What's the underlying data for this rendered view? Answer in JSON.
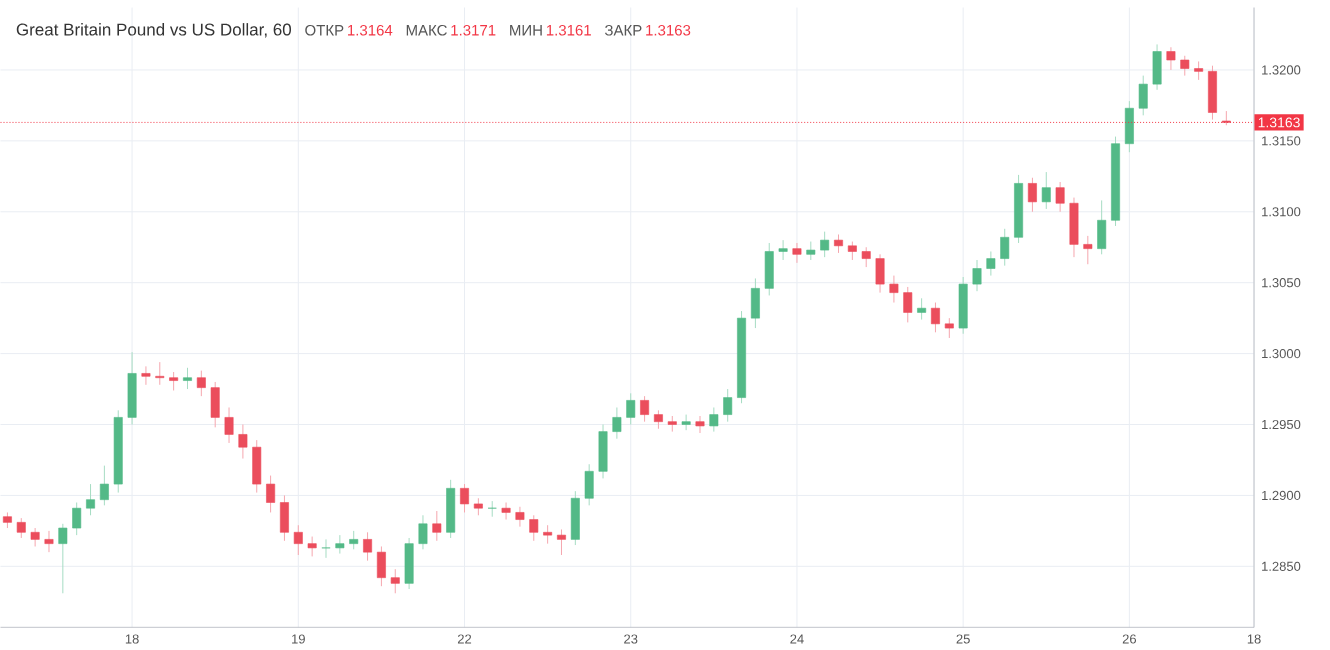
{
  "chart_data": {
    "type": "candlestick",
    "title": "Great Britain Pound vs US Dollar, 60",
    "annotations": [
      "ОТКР",
      "1.3164",
      "МАКС",
      "1.3171",
      "МИН",
      "1.3161",
      "ЗАКР",
      "1.3163"
    ],
    "categories": [
      null,
      null,
      null,
      null,
      null,
      null,
      null,
      null,
      null,
      "18",
      null,
      null,
      null,
      null,
      null,
      null,
      null,
      null,
      null,
      null,
      null,
      "19",
      null,
      null,
      null,
      null,
      null,
      null,
      null,
      null,
      null,
      null,
      null,
      "22",
      null,
      null,
      null,
      null,
      null,
      null,
      null,
      null,
      null,
      null,
      null,
      "23",
      null,
      null,
      null,
      null,
      null,
      null,
      null,
      null,
      null,
      null,
      null,
      "24",
      null,
      null,
      null,
      null,
      null,
      null,
      null,
      null,
      null,
      null,
      null,
      "25",
      null,
      null,
      null,
      null,
      null,
      null,
      null,
      null,
      null,
      null,
      null,
      "26",
      null,
      null,
      null,
      null,
      null,
      null,
      null,
      null,
      "18"
    ],
    "ohlc": [
      [
        1.2885,
        1.2888,
        1.2877,
        1.2881
      ],
      [
        1.2881,
        1.2884,
        1.287,
        1.2874
      ],
      [
        1.2874,
        1.2877,
        1.2864,
        1.2869
      ],
      [
        1.2869,
        1.2875,
        1.286,
        1.2866
      ],
      [
        1.2866,
        1.288,
        1.2831,
        1.2877
      ],
      [
        1.2877,
        1.2895,
        1.2872,
        1.2891
      ],
      [
        1.2891,
        1.2908,
        1.2886,
        1.2897
      ],
      [
        1.2897,
        1.2921,
        1.2893,
        1.2908
      ],
      [
        1.2908,
        1.296,
        1.2902,
        1.2955
      ],
      [
        1.2955,
        1.3001,
        1.295,
        1.2986
      ],
      [
        1.2986,
        1.2991,
        1.2978,
        1.2984
      ],
      [
        1.2984,
        1.2994,
        1.2978,
        1.2983
      ],
      [
        1.2983,
        1.2987,
        1.2974,
        1.2981
      ],
      [
        1.2981,
        1.299,
        1.2975,
        1.2983
      ],
      [
        1.2983,
        1.2988,
        1.297,
        1.2976
      ],
      [
        1.2976,
        1.298,
        1.2948,
        1.2955
      ],
      [
        1.2955,
        1.2962,
        1.2937,
        1.2943
      ],
      [
        1.2943,
        1.295,
        1.2926,
        1.2934
      ],
      [
        1.2934,
        1.2939,
        1.2902,
        1.2908
      ],
      [
        1.2908,
        1.2914,
        1.2888,
        1.2895
      ],
      [
        1.2895,
        1.29,
        1.2868,
        1.2874
      ],
      [
        1.2874,
        1.2879,
        1.2858,
        1.2866
      ],
      [
        1.2866,
        1.2871,
        1.2857,
        1.2863
      ],
      [
        1.2863,
        1.2869,
        1.2856,
        1.2863
      ],
      [
        1.2863,
        1.2872,
        1.2859,
        1.2866
      ],
      [
        1.2866,
        1.2875,
        1.2862,
        1.2869
      ],
      [
        1.2869,
        1.2874,
        1.2854,
        1.286
      ],
      [
        1.286,
        1.2864,
        1.2836,
        1.2842
      ],
      [
        1.2842,
        1.2848,
        1.2831,
        1.2838
      ],
      [
        1.2838,
        1.287,
        1.2834,
        1.2866
      ],
      [
        1.2866,
        1.2886,
        1.2862,
        1.288
      ],
      [
        1.288,
        1.2889,
        1.2868,
        1.2874
      ],
      [
        1.2874,
        1.2911,
        1.287,
        1.2905
      ],
      [
        1.2905,
        1.2908,
        1.2888,
        1.2894
      ],
      [
        1.2894,
        1.2898,
        1.2886,
        1.2891
      ],
      [
        1.2891,
        1.2896,
        1.2885,
        1.2891
      ],
      [
        1.2891,
        1.2895,
        1.2883,
        1.2888
      ],
      [
        1.2888,
        1.2892,
        1.2878,
        1.2883
      ],
      [
        1.2883,
        1.2886,
        1.2868,
        1.2874
      ],
      [
        1.2874,
        1.2879,
        1.2866,
        1.2872
      ],
      [
        1.2872,
        1.2876,
        1.2858,
        1.2869
      ],
      [
        1.2869,
        1.2903,
        1.2865,
        1.2898
      ],
      [
        1.2898,
        1.2922,
        1.2893,
        1.2917
      ],
      [
        1.2917,
        1.295,
        1.2912,
        1.2945
      ],
      [
        1.2945,
        1.2962,
        1.294,
        1.2955
      ],
      [
        1.2955,
        1.2972,
        1.295,
        1.2967
      ],
      [
        1.2967,
        1.297,
        1.2952,
        1.2957
      ],
      [
        1.2957,
        1.296,
        1.2947,
        1.2952
      ],
      [
        1.2952,
        1.2956,
        1.2945,
        1.295
      ],
      [
        1.295,
        1.2957,
        1.2946,
        1.2952
      ],
      [
        1.2952,
        1.2956,
        1.2944,
        1.2949
      ],
      [
        1.2949,
        1.2962,
        1.2945,
        1.2957
      ],
      [
        1.2957,
        1.2975,
        1.2952,
        1.2969
      ],
      [
        1.2969,
        1.303,
        1.2965,
        1.3025
      ],
      [
        1.3025,
        1.3053,
        1.3018,
        1.3046
      ],
      [
        1.3046,
        1.3078,
        1.3041,
        1.3072
      ],
      [
        1.3072,
        1.308,
        1.3066,
        1.3074
      ],
      [
        1.3074,
        1.3078,
        1.3064,
        1.307
      ],
      [
        1.307,
        1.3079,
        1.3066,
        1.3073
      ],
      [
        1.3073,
        1.3086,
        1.3068,
        1.308
      ],
      [
        1.308,
        1.3084,
        1.3071,
        1.3076
      ],
      [
        1.3076,
        1.3079,
        1.3066,
        1.3072
      ],
      [
        1.3072,
        1.3075,
        1.3061,
        1.3067
      ],
      [
        1.3067,
        1.307,
        1.3043,
        1.3049
      ],
      [
        1.3049,
        1.3055,
        1.3036,
        1.3043
      ],
      [
        1.3043,
        1.3047,
        1.3022,
        1.3029
      ],
      [
        1.3029,
        1.3039,
        1.3024,
        1.3032
      ],
      [
        1.3032,
        1.3036,
        1.3015,
        1.3021
      ],
      [
        1.3021,
        1.3025,
        1.3011,
        1.3018
      ],
      [
        1.3018,
        1.3054,
        1.3014,
        1.3049
      ],
      [
        1.3049,
        1.3066,
        1.3044,
        1.306
      ],
      [
        1.306,
        1.3072,
        1.3055,
        1.3067
      ],
      [
        1.3067,
        1.3088,
        1.3062,
        1.3082
      ],
      [
        1.3082,
        1.3126,
        1.3078,
        1.312
      ],
      [
        1.312,
        1.3124,
        1.31,
        1.3107
      ],
      [
        1.3107,
        1.3128,
        1.3102,
        1.3117
      ],
      [
        1.3117,
        1.3121,
        1.31,
        1.3106
      ],
      [
        1.3106,
        1.311,
        1.3068,
        1.3077
      ],
      [
        1.3077,
        1.3083,
        1.3063,
        1.3074
      ],
      [
        1.3074,
        1.3108,
        1.307,
        1.3094
      ],
      [
        1.3094,
        1.3153,
        1.309,
        1.3148
      ],
      [
        1.3148,
        1.3178,
        1.3142,
        1.3173
      ],
      [
        1.3173,
        1.3196,
        1.3168,
        1.319
      ],
      [
        1.319,
        1.3218,
        1.3186,
        1.3213
      ],
      [
        1.3213,
        1.3216,
        1.32,
        1.3207
      ],
      [
        1.3207,
        1.321,
        1.3196,
        1.3201
      ],
      [
        1.3201,
        1.3206,
        1.3193,
        1.3199
      ],
      [
        1.3199,
        1.3203,
        1.3165,
        1.317
      ],
      [
        1.3164,
        1.3171,
        1.3161,
        1.3163
      ],
      null,
      null
    ],
    "ylim": [
      1.2807,
      1.3244
    ],
    "yticks": [
      {
        "value": 1.285,
        "label": "1.2850"
      },
      {
        "value": 1.29,
        "label": "1.2900"
      },
      {
        "value": 1.295,
        "label": "1.2950"
      },
      {
        "value": 1.3,
        "label": "1.3000"
      },
      {
        "value": 1.305,
        "label": "1.3050"
      },
      {
        "value": 1.31,
        "label": "1.3100"
      },
      {
        "value": 1.315,
        "label": "1.3150"
      },
      {
        "value": 1.32,
        "label": "1.3200"
      }
    ],
    "grid": true,
    "ref_lines": [
      {
        "axis": "y",
        "value": 1.3163,
        "label": "1.3163",
        "color": "#f23645",
        "line_style": "dotted"
      }
    ]
  }
}
